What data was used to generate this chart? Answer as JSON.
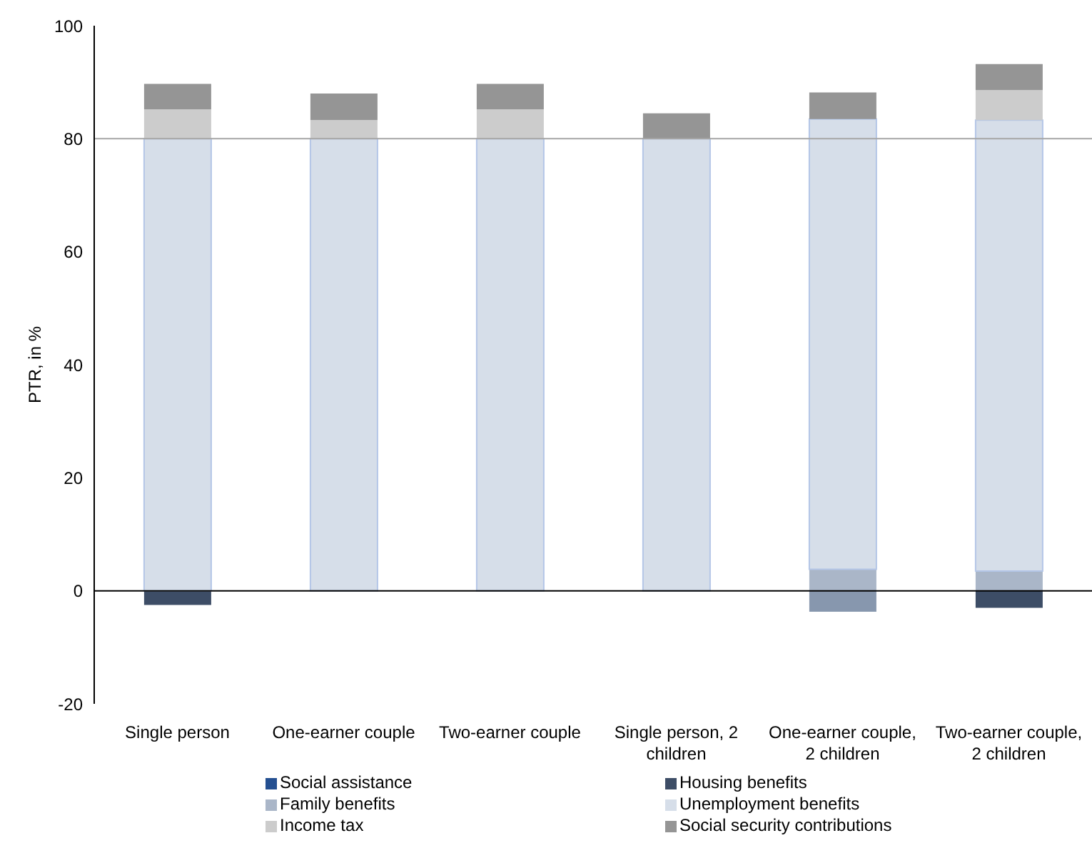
{
  "chart_data": {
    "type": "bar",
    "stacked": true,
    "ylabel": "PTR, in %",
    "categories": [
      "Single person",
      "One-earner couple",
      "Two-earner couple",
      "Single person, 2 children",
      "One-earner couple, 2 children",
      "Two-earner couple, 2 children"
    ],
    "series": [
      {
        "name": "Social assistance",
        "color": "#244f91",
        "values": [
          null,
          null,
          null,
          null,
          null,
          null
        ]
      },
      {
        "name": "Housing benefits",
        "color": "#3d4d66",
        "colors": [
          "#3d4d66",
          "#3d4d66",
          "#3d4d66",
          "#3d4d66",
          "#8797ae",
          "#3d4d66"
        ],
        "values": [
          -2.5,
          null,
          null,
          null,
          -3.7,
          -3
        ]
      },
      {
        "name": "Family benefits",
        "color": "#aab6c8",
        "values": [
          null,
          null,
          null,
          null,
          3.8,
          3.5
        ]
      },
      {
        "name": "Unemployment benefits",
        "color": "#d6dee9",
        "values": [
          80,
          80,
          80,
          80,
          79.7,
          79.8
        ]
      },
      {
        "name": "Income tax",
        "color": "#cccccc",
        "values": [
          5.2,
          3.3,
          5.2,
          null,
          null,
          5.3
        ]
      },
      {
        "name": "Social security contributions",
        "color": "#959595",
        "values": [
          4.5,
          4.7,
          4.5,
          4.5,
          4.7,
          4.6
        ]
      }
    ],
    "ylim": [
      -20,
      100
    ],
    "yticks": [
      -20,
      0,
      20,
      40,
      60,
      80,
      100
    ],
    "ref_lines": [
      {
        "axis": "y",
        "value": 80,
        "color": "#a6a6a6"
      }
    ],
    "legend": "bottom"
  }
}
